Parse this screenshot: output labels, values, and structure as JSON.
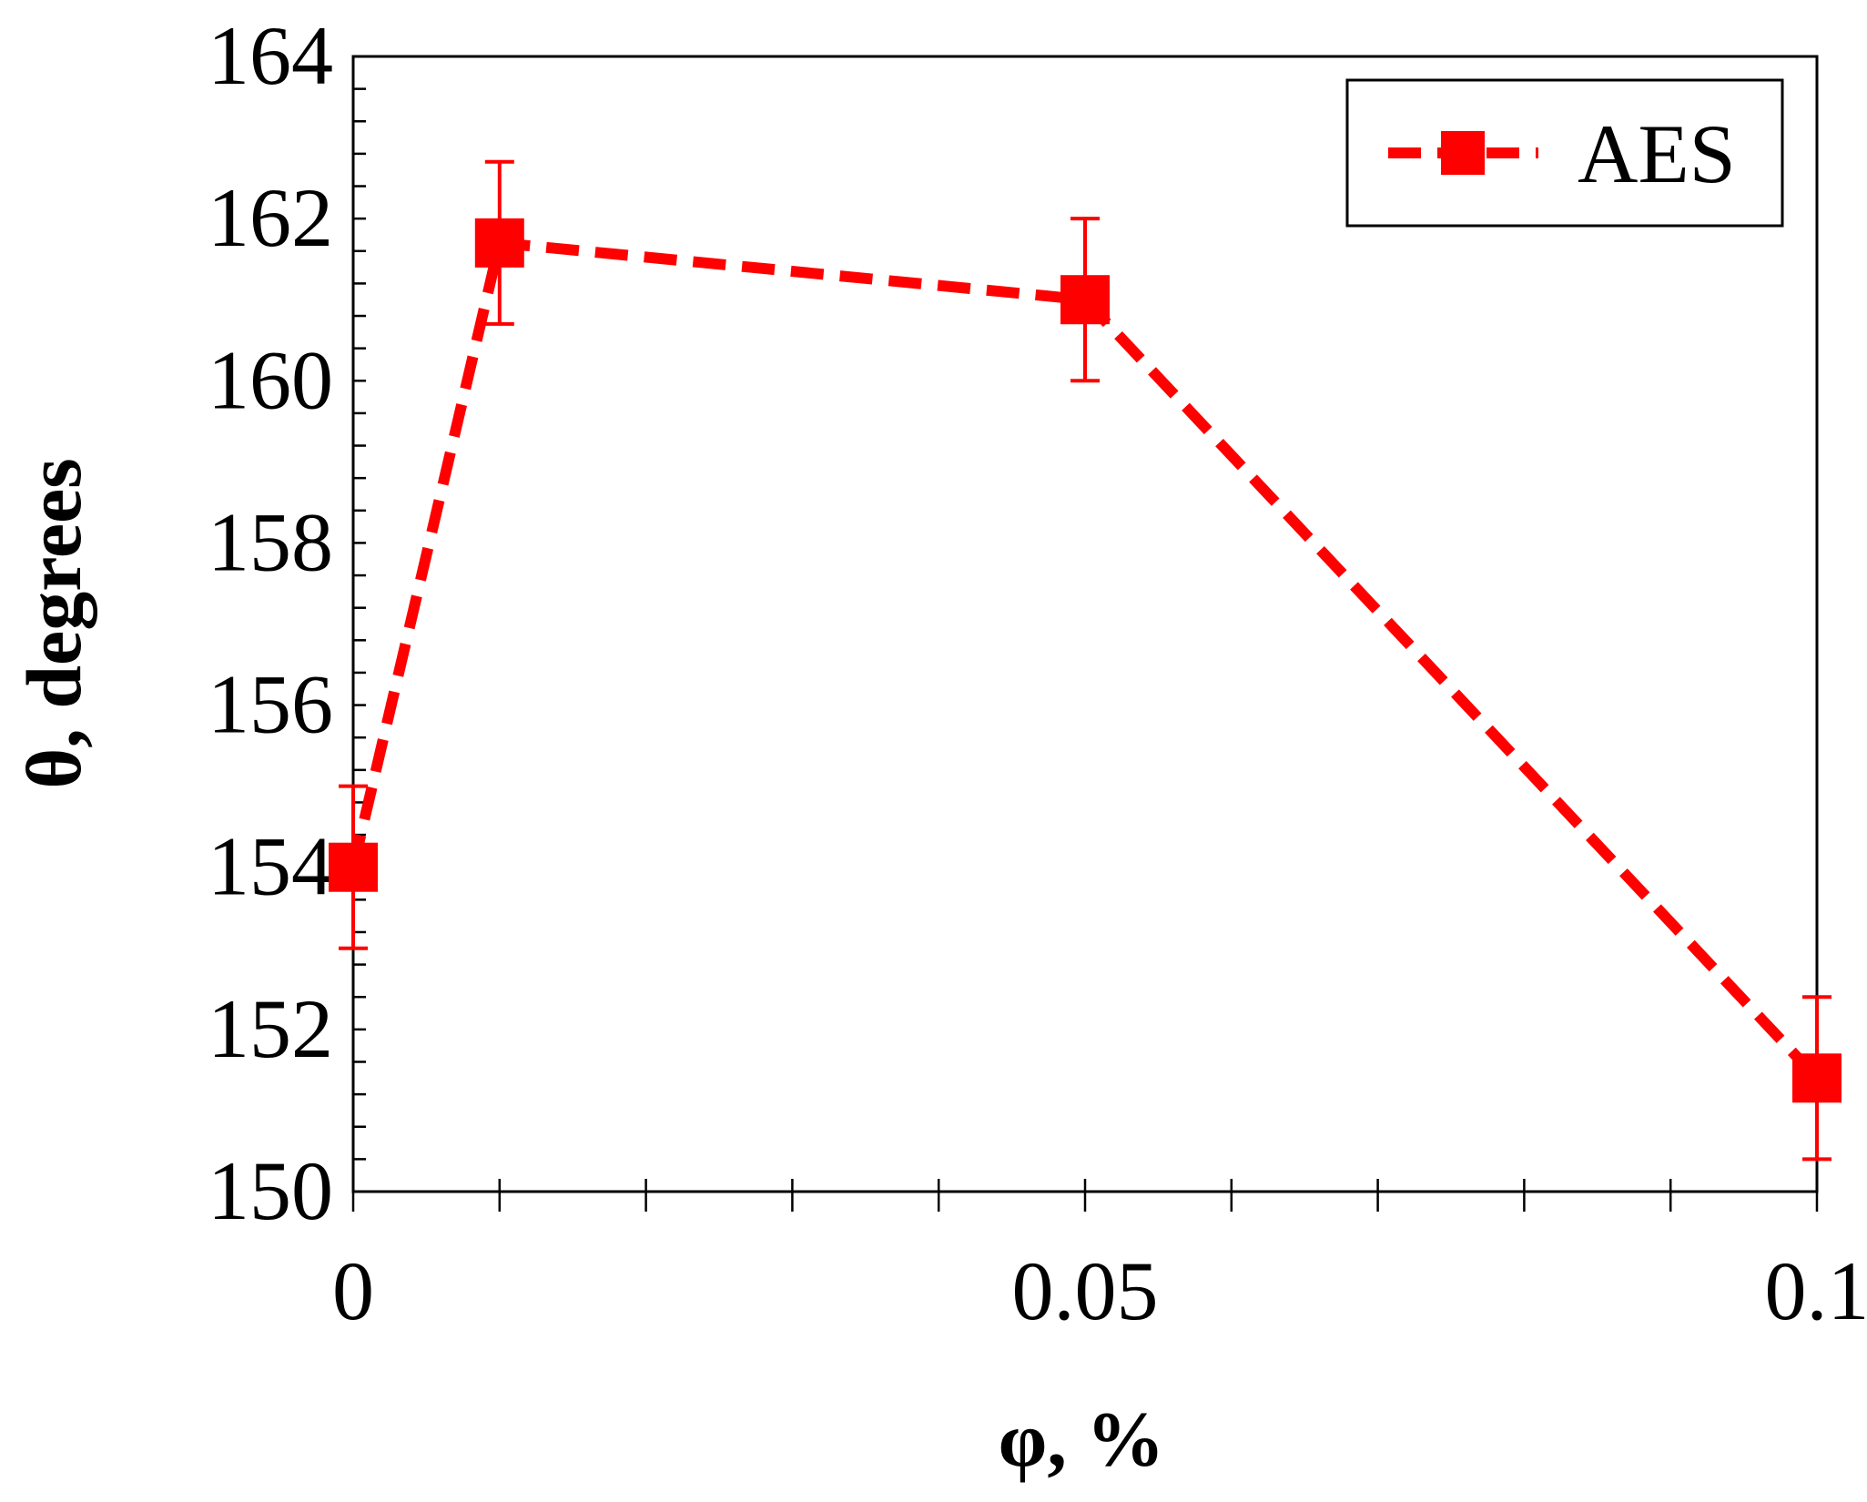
{
  "chart_data": {
    "type": "line",
    "title": "",
    "xlabel": "φ, %",
    "ylabel": "θ, degrees",
    "xlim": [
      0,
      0.1
    ],
    "ylim": [
      150,
      164
    ],
    "x_ticks": [
      0,
      0.05,
      0.1
    ],
    "x_tick_labels": [
      "0",
      "0.05",
      "0.1"
    ],
    "x_minor_step": 0.01,
    "y_ticks": [
      150,
      152,
      154,
      156,
      158,
      160,
      162,
      164
    ],
    "y_tick_labels": [
      "150",
      "152",
      "154",
      "156",
      "158",
      "160",
      "162",
      "164"
    ],
    "y_minor_step": 0.4,
    "grid": false,
    "legend_position": "top-right",
    "series": [
      {
        "name": "AES",
        "color": "#ff0000",
        "line_style": "dashed",
        "marker": "square",
        "points": [
          {
            "x": 0,
            "y": 154.0,
            "err": 1.0
          },
          {
            "x": 0.01,
            "y": 161.7,
            "err": 1.0
          },
          {
            "x": 0.05,
            "y": 161.0,
            "err": 1.0
          },
          {
            "x": 0.1,
            "y": 151.4,
            "err": 1.0
          }
        ]
      }
    ]
  }
}
